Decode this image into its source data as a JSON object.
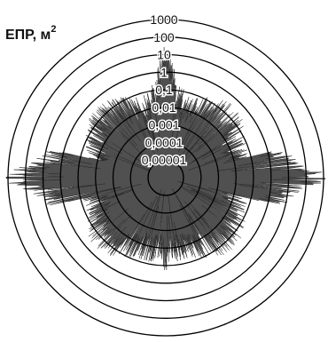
{
  "chart_data": {
    "type": "polar",
    "ylabel": "ЕПР, м",
    "ylabel_exponent": "2",
    "radial_scale": "log",
    "radial_range": [
      1e-05,
      1000
    ],
    "radial_tick_labels": [
      "0,00001",
      "0,0001",
      "0,001",
      "0,01",
      "0,1",
      "1",
      "10",
      "100",
      "1000"
    ],
    "radial_tick_values": [
      1e-05,
      0.0001,
      0.001,
      0.01,
      0.1,
      1,
      10,
      100,
      1000
    ],
    "grid": true,
    "series": [
      {
        "values_description": "noisy radar cross-section pattern vs angle",
        "peaks_deg": [
          0,
          90,
          180,
          270
        ],
        "peak_values": [
          10,
          1000,
          0.1,
          1000
        ],
        "typical_range": [
          0.0001,
          0.1
        ]
      }
    ],
    "colors": {
      "series": "#3a3a3a",
      "grid": "#000000"
    }
  }
}
